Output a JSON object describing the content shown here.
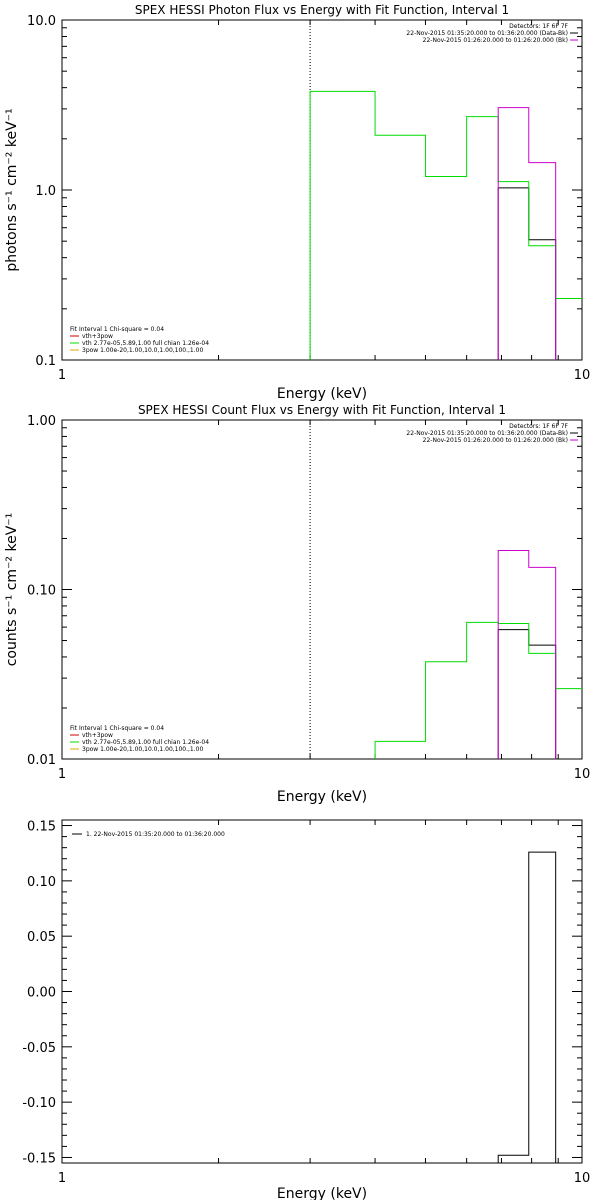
{
  "chart_data": [
    {
      "type": "line",
      "title": "SPEX HESSI Photon Flux vs Energy with Fit Function, Interval 1",
      "xlabel": "Energy (keV)",
      "ylabel": "photons s⁻¹ cm⁻² keV⁻¹",
      "x_scale": "log",
      "y_scale": "log",
      "xlim": [
        1,
        10
      ],
      "ylim": [
        0.1,
        10
      ],
      "x_ticks": [
        "1",
        "10"
      ],
      "y_ticks": [
        "0.1",
        "1.0",
        "10.0"
      ],
      "vline": 3,
      "legend_top": [
        "Detectors: 1F 6F 7F",
        "22-Nov-2015 01:35:20.000 to 01:36:20.000 (Data-Bk)",
        "22-Nov-2015 01:26:20.000 to 01:26:20.000 (Bk)"
      ],
      "legend_bottom": [
        "Fit Interval  1    Chi-square = 0.04",
        "vth+3pow",
        "vth 2.77e-05,5.89,1.00   full chian 1.26e-04",
        "3pow 1.00e-20,1.00,10.0,1.00,100.,1.00"
      ],
      "series": [
        {
          "name": "vth+3pow",
          "color": "#000000",
          "edges": [
            6.9,
            7.9,
            8.9
          ],
          "values": [
            1.03,
            0.51
          ]
        },
        {
          "name": "vth 2.77e-05,5.89,1.00   full chian 1.26e-04",
          "color": "#00dd00",
          "edges": [
            3.0,
            4.0,
            5.0,
            6.0,
            6.9,
            7.9,
            8.9,
            10.0
          ],
          "values": [
            3.8,
            2.1,
            1.2,
            2.7,
            1.12,
            0.47,
            0.23
          ]
        },
        {
          "name": "Bk",
          "color": "#cc00cc",
          "edges": [
            6.9,
            7.9,
            8.9
          ],
          "values": [
            3.05,
            1.45
          ]
        }
      ]
    },
    {
      "type": "line",
      "title": "SPEX HESSI Count Flux vs Energy with Fit Function, Interval 1",
      "xlabel": "Energy (keV)",
      "ylabel": "counts s⁻¹ cm⁻² keV⁻¹",
      "x_scale": "log",
      "y_scale": "log",
      "xlim": [
        1,
        10
      ],
      "ylim": [
        0.01,
        1
      ],
      "x_ticks": [
        "1",
        "10"
      ],
      "y_ticks": [
        "0.01",
        "0.10",
        "1.00"
      ],
      "vline": 3,
      "legend_top": [
        "Detectors: 1F 6F 7F",
        "22-Nov-2015 01:35:20.000 to 01:36:20.000 (Data-Bk)",
        "22-Nov-2015 01:26:20.000 to 01:26:20.000 (Bk)"
      ],
      "legend_bottom": [
        "Fit Interval  1    Chi-square = 0.04",
        "vth+3pow",
        "vth 2.77e-05,5.89,1.00   full chian 1.26e-04",
        "3pow 1.00e-20,1.00,10.0,1.00,100.,1.00"
      ],
      "series": [
        {
          "name": "vth+3pow",
          "color": "#000000",
          "edges": [
            6.9,
            7.9,
            8.9
          ],
          "values": [
            0.058,
            0.047
          ]
        },
        {
          "name": "vth 2.77e-05,5.89,1.00   full chian 1.26e-04",
          "color": "#00dd00",
          "edges": [
            4.0,
            5.0,
            6.0,
            6.9,
            7.9,
            8.9,
            10.0
          ],
          "values": [
            0.0127,
            0.0375,
            0.064,
            0.063,
            0.042,
            0.026
          ]
        },
        {
          "name": "Bk",
          "color": "#cc00cc",
          "edges": [
            6.9,
            7.9,
            8.9
          ],
          "values": [
            0.17,
            0.135
          ]
        }
      ]
    },
    {
      "type": "line",
      "title": "",
      "xlabel": "Energy (keV)",
      "ylabel": "",
      "x_scale": "log",
      "y_scale": "linear",
      "xlim": [
        1,
        10
      ],
      "ylim": [
        -0.155,
        0.155
      ],
      "x_ticks": [
        "1",
        "10"
      ],
      "y_ticks": [
        "0.15",
        "0.10",
        "0.05",
        "0.00",
        "-0.05",
        "-0.10",
        "-0.15"
      ],
      "legend_top": [
        "1. 22-Nov-2015 01:35:20.000 to 01:36:20.000"
      ],
      "series": [
        {
          "name": "1. 22-Nov-2015 01:35:20.000 to 01:36:20.000",
          "color": "#000000",
          "edges": [
            6.9,
            7.9,
            8.9
          ],
          "values": [
            -0.148,
            0.126
          ]
        }
      ]
    }
  ]
}
